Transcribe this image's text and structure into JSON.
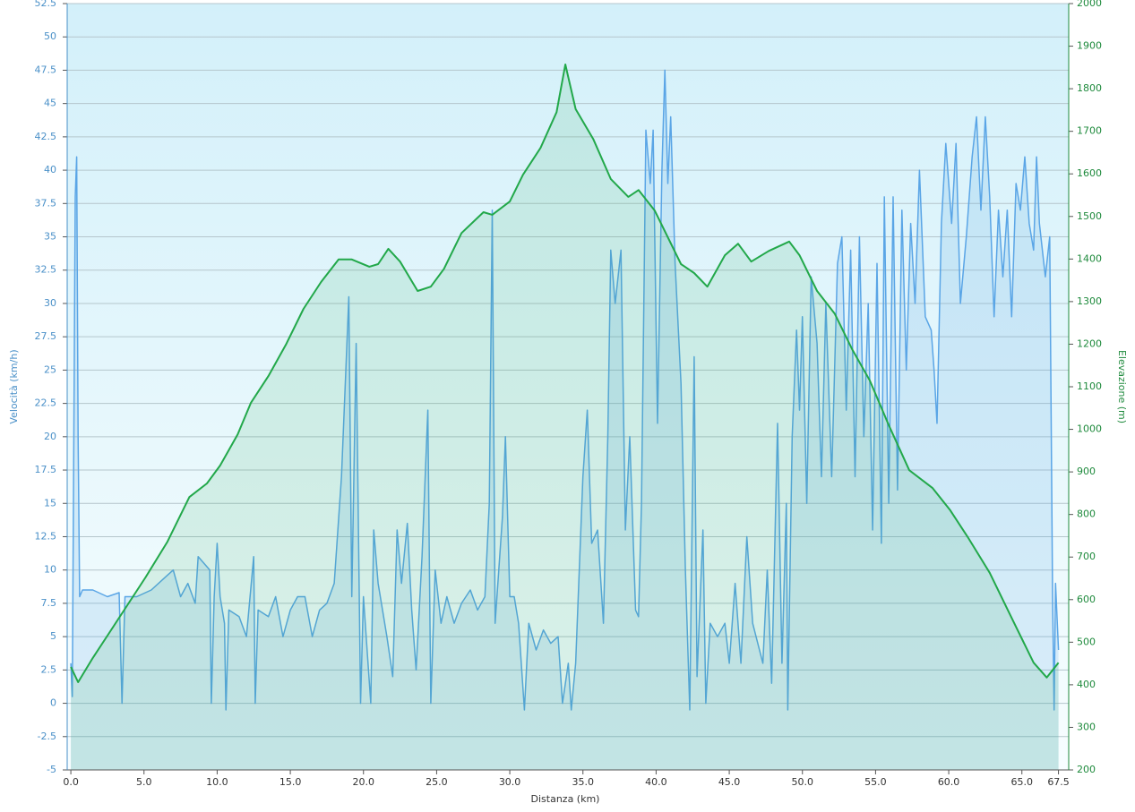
{
  "chart_data": {
    "type": "line",
    "xlabel": "Distanza  (km)",
    "ylabel": "Velocità (km/h)",
    "y2label": "Elevazione (m)",
    "xlim": [
      -0.25,
      68.2
    ],
    "xticks": [
      {
        "value": 0,
        "label": "0.0"
      },
      {
        "value": 5,
        "label": "5.0"
      },
      {
        "value": 10,
        "label": "10.0"
      },
      {
        "value": 15,
        "label": "15.0"
      },
      {
        "value": 20,
        "label": "20.0"
      },
      {
        "value": 25,
        "label": "25.0"
      },
      {
        "value": 30,
        "label": "30.0"
      },
      {
        "value": 35,
        "label": "35.0"
      },
      {
        "value": 40,
        "label": "40.0"
      },
      {
        "value": 45,
        "label": "45.0"
      },
      {
        "value": 50,
        "label": "50.0"
      },
      {
        "value": 55,
        "label": "55.0"
      },
      {
        "value": 60,
        "label": "60.0"
      },
      {
        "value": 65,
        "label": "65.0"
      },
      67.5
    ],
    "ylim": [
      -5,
      52.5
    ],
    "yticks": [
      -5,
      -2.5,
      0,
      2.5,
      5,
      7.5,
      10,
      12.5,
      15,
      17.5,
      20,
      22.5,
      25,
      27.5,
      30,
      32.5,
      35,
      37.5,
      40,
      42.5,
      45,
      47.5,
      50,
      52.5
    ],
    "y2lim": [
      200,
      2000
    ],
    "y2ticks": [
      200,
      300,
      400,
      500,
      600,
      700,
      800,
      900,
      1000,
      1100,
      1200,
      1300,
      1400,
      1500,
      1600,
      1700,
      1800,
      1900,
      2000
    ],
    "grid": true,
    "series": [
      {
        "name": "Velocità",
        "color": "#5aa5e6",
        "axis": "y",
        "x": [
          0,
          0.1,
          0.3,
          0.4,
          0.5,
          0.6,
          0.8,
          1.5,
          2.5,
          3.3,
          3.5,
          3.7,
          4.5,
          5.5,
          6.5,
          7,
          7.5,
          8,
          8.5,
          8.7,
          9.5,
          9.6,
          9.8,
          10,
          10.2,
          10.5,
          10.6,
          10.8,
          11.5,
          12,
          12.5,
          12.6,
          12.8,
          13.5,
          14,
          14.5,
          15,
          15.5,
          16,
          16.5,
          17,
          17.5,
          18,
          18.5,
          19,
          19.2,
          19.5,
          19.8,
          20,
          20.5,
          20.7,
          21,
          21.3,
          21.6,
          22,
          22.3,
          22.6,
          23,
          23.3,
          23.6,
          24,
          24.4,
          24.6,
          24.9,
          25.3,
          25.7,
          26.2,
          26.7,
          27.3,
          27.8,
          28.3,
          28.6,
          28.8,
          29,
          29.5,
          29.7,
          30,
          30.3,
          30.6,
          31,
          31.3,
          31.8,
          32.3,
          32.8,
          33.3,
          33.6,
          34,
          34.2,
          34.5,
          35,
          35.3,
          35.6,
          36,
          36.4,
          36.7,
          36.9,
          37.2,
          37.6,
          37.9,
          38.2,
          38.6,
          38.8,
          39,
          39.3,
          39.6,
          39.8,
          40.1,
          40.4,
          40.6,
          40.8,
          41,
          41.3,
          41.7,
          42,
          42.3,
          42.6,
          42.8,
          43.2,
          43.4,
          43.7,
          44.2,
          44.7,
          45,
          45.4,
          45.8,
          46.2,
          46.6,
          47.3,
          47.6,
          47.9,
          48.3,
          48.6,
          48.9,
          49,
          49.3,
          49.6,
          49.8,
          50,
          50.3,
          50.6,
          51,
          51.3,
          51.6,
          52,
          52.4,
          52.7,
          53,
          53.3,
          53.6,
          53.9,
          54.2,
          54.5,
          54.8,
          55.1,
          55.4,
          55.6,
          55.9,
          56.2,
          56.5,
          56.8,
          57.1,
          57.4,
          57.7,
          58,
          58.4,
          58.8,
          59,
          59.2,
          59.5,
          59.8,
          60.2,
          60.5,
          60.8,
          61.2,
          61.6,
          61.9,
          62.2,
          62.5,
          62.8,
          63.1,
          63.4,
          63.7,
          64,
          64.3,
          64.6,
          64.9,
          65.2,
          65.5,
          65.8,
          66,
          66.2,
          66.6,
          66.9,
          67.1,
          67.2,
          67.3,
          67.5
        ],
        "values": [
          3,
          0.5,
          38,
          41,
          20,
          8,
          8.5,
          8.5,
          8,
          8.3,
          0,
          8,
          8,
          8.5,
          9.5,
          10,
          8,
          9,
          7.5,
          11,
          10,
          0,
          8,
          12,
          8,
          6,
          -0.5,
          7,
          6.5,
          5,
          11,
          0,
          7,
          6.5,
          8,
          5,
          7,
          8,
          8,
          5,
          7,
          7.5,
          9,
          17,
          30.5,
          8,
          27,
          0,
          8,
          0,
          13,
          9,
          7,
          5,
          2,
          13,
          9,
          13.5,
          7,
          2.5,
          11,
          22,
          0,
          10,
          6,
          8,
          6,
          7.5,
          8.5,
          7,
          8,
          15,
          37,
          6,
          14,
          20,
          8,
          8,
          6,
          -0.5,
          6,
          4,
          5.5,
          4.5,
          5,
          0,
          3,
          -0.5,
          3,
          17,
          22,
          12,
          13,
          6,
          20,
          34,
          30,
          34,
          13,
          20,
          7,
          6.5,
          15,
          43,
          39,
          43,
          21,
          40,
          47.5,
          39,
          44,
          33,
          24,
          10,
          -0.5,
          26,
          2,
          13,
          0,
          6,
          5,
          6,
          3,
          9,
          3,
          12.5,
          6,
          3,
          10,
          1.5,
          21,
          3,
          15,
          -0.5,
          20,
          28,
          22,
          29,
          15,
          32,
          27,
          17,
          30,
          17,
          33,
          35,
          22,
          34,
          17,
          35,
          20,
          30,
          13,
          33,
          12,
          38,
          15,
          38,
          16,
          37,
          25,
          36,
          30,
          40,
          29,
          28,
          25,
          21,
          36,
          42,
          36,
          42,
          30,
          35,
          41,
          44,
          37,
          44,
          38,
          29,
          37,
          32,
          37,
          29,
          39,
          37,
          41,
          36,
          34,
          41,
          36,
          32,
          35,
          8,
          -0.5,
          9,
          4
        ]
      },
      {
        "name": "Elevazione",
        "color": "#22a84a",
        "axis": "y2",
        "x": [
          0,
          0.5,
          1.5,
          2.7,
          3.9,
          5.1,
          6.6,
          8.1,
          9.3,
          10.2,
          11.4,
          12.3,
          13.5,
          14.7,
          15.9,
          17.1,
          18.3,
          19.2,
          20.4,
          21,
          21.7,
          22.5,
          23.7,
          24.6,
          25.5,
          26.7,
          28.2,
          28.8,
          30,
          30.9,
          32.1,
          33.2,
          33.8,
          34.5,
          35.7,
          36.9,
          38.1,
          38.8,
          39.9,
          41.7,
          42.6,
          43.5,
          44.7,
          45.6,
          46.5,
          47.7,
          49.1,
          49.8,
          51,
          52.2,
          53.4,
          54.6,
          55.9,
          57.3,
          58.9,
          60.1,
          61.3,
          62.8,
          64.3,
          65.8,
          66.7,
          67.5
        ],
        "values": [
          442,
          406,
          463,
          526,
          589,
          652,
          736,
          841,
          873,
          915,
          988,
          1062,
          1125,
          1199,
          1283,
          1346,
          1399,
          1399,
          1382,
          1388,
          1424,
          1394,
          1325,
          1335,
          1377,
          1461,
          1510,
          1504,
          1535,
          1598,
          1661,
          1745,
          1857,
          1752,
          1682,
          1588,
          1546,
          1562,
          1514,
          1388,
          1367,
          1335,
          1409,
          1436,
          1394,
          1419,
          1441,
          1409,
          1325,
          1272,
          1188,
          1115,
          1010,
          904,
          862,
          810,
          747,
          663,
          557,
          452,
          417,
          452
        ]
      }
    ]
  }
}
